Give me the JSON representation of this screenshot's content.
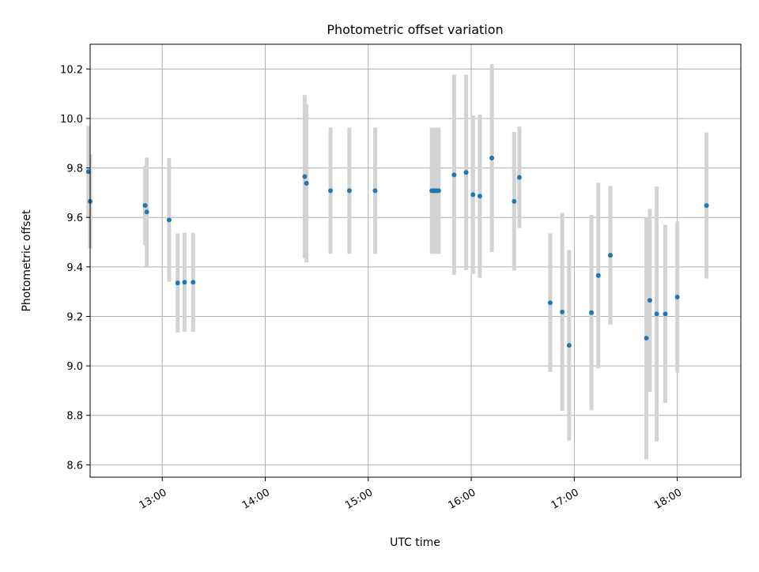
{
  "chart_data": {
    "type": "scatter",
    "title": "Photometric offset variation",
    "xlabel": "UTC time",
    "ylabel": "Photometric offset",
    "x_range": [
      "12:18",
      "18:37"
    ],
    "ylim": [
      8.55,
      10.3
    ],
    "x_ticks": [
      "13:00",
      "14:00",
      "15:00",
      "16:00",
      "17:00",
      "18:00"
    ],
    "y_ticks": [
      "8.6",
      "8.8",
      "9.0",
      "9.2",
      "9.4",
      "9.6",
      "9.8",
      "10.0",
      "10.2"
    ],
    "grid": true,
    "marker_color": "#1f77b4",
    "errorbar_color": "#d3d3d3",
    "series": [
      {
        "points": [
          {
            "x": "12:17",
            "y": 9.785,
            "err": 0.185
          },
          {
            "x": "12:18",
            "y": 9.665,
            "err": 0.19
          },
          {
            "x": "12:50",
            "y": 9.648,
            "err": 0.16
          },
          {
            "x": "12:51",
            "y": 9.622,
            "err": 0.22
          },
          {
            "x": "13:04",
            "y": 9.59,
            "err": 0.25
          },
          {
            "x": "13:09",
            "y": 9.335,
            "err": 0.2
          },
          {
            "x": "13:13",
            "y": 9.338,
            "err": 0.2
          },
          {
            "x": "13:18",
            "y": 9.338,
            "err": 0.2
          },
          {
            "x": "14:23",
            "y": 9.765,
            "err": 0.33
          },
          {
            "x": "14:24",
            "y": 9.738,
            "err": 0.32
          },
          {
            "x": "14:38",
            "y": 9.708,
            "err": 0.255
          },
          {
            "x": "14:49",
            "y": 9.708,
            "err": 0.255
          },
          {
            "x": "15:04",
            "y": 9.708,
            "err": 0.255
          },
          {
            "x": "15:37",
            "y": 9.708,
            "err": 0.255
          },
          {
            "x": "15:38",
            "y": 9.708,
            "err": 0.255
          },
          {
            "x": "15:39",
            "y": 9.708,
            "err": 0.255
          },
          {
            "x": "15:40",
            "y": 9.708,
            "err": 0.255
          },
          {
            "x": "15:41",
            "y": 9.708,
            "err": 0.255
          },
          {
            "x": "15:50",
            "y": 9.772,
            "err": 0.405
          },
          {
            "x": "15:57",
            "y": 9.782,
            "err": 0.395
          },
          {
            "x": "16:01",
            "y": 9.692,
            "err": 0.32
          },
          {
            "x": "16:05",
            "y": 9.686,
            "err": 0.33
          },
          {
            "x": "16:12",
            "y": 9.84,
            "err": 0.38
          },
          {
            "x": "16:25",
            "y": 9.665,
            "err": 0.28
          },
          {
            "x": "16:28",
            "y": 9.762,
            "err": 0.205
          },
          {
            "x": "17:44",
            "y": 9.265,
            "err": 0.37
          },
          {
            "x": "16:46",
            "y": 9.255,
            "err": 0.28
          },
          {
            "x": "16:53",
            "y": 9.218,
            "err": 0.4
          },
          {
            "x": "16:57",
            "y": 9.083,
            "err": 0.385
          },
          {
            "x": "17:10",
            "y": 9.215,
            "err": 0.395
          },
          {
            "x": "17:14",
            "y": 9.365,
            "err": 0.375
          },
          {
            "x": "17:21",
            "y": 9.447,
            "err": 0.28
          },
          {
            "x": "17:42",
            "y": 9.112,
            "err": 0.49
          },
          {
            "x": "17:48",
            "y": 9.21,
            "err": 0.515
          },
          {
            "x": "17:53",
            "y": 9.21,
            "err": 0.36
          },
          {
            "x": "18:00",
            "y": 9.278,
            "err": 0.305
          },
          {
            "x": "18:17",
            "y": 9.648,
            "err": 0.295
          }
        ]
      }
    ]
  }
}
